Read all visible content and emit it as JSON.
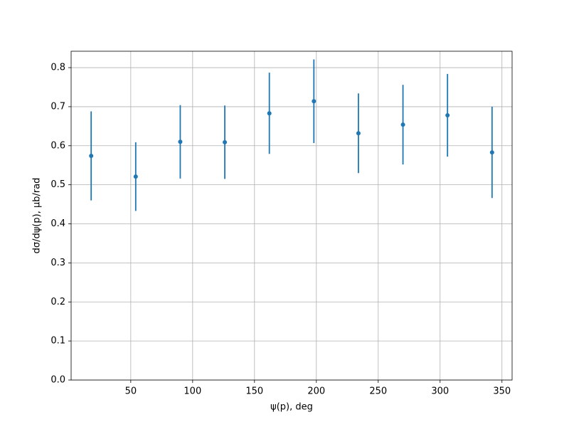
{
  "chart_data": {
    "type": "errorbar",
    "x_label": "ψ(p), deg",
    "y_label": "dσ/dψ(p), μb/rad",
    "x": [
      18,
      54,
      90,
      126,
      162,
      198,
      234,
      270,
      306,
      342
    ],
    "series": [
      {
        "color": "#1f77b4",
        "values": [
          0.574,
          0.521,
          0.61,
          0.609,
          0.683,
          0.714,
          0.632,
          0.654,
          0.678,
          0.583
        ],
        "errors": [
          0.114,
          0.088,
          0.094,
          0.094,
          0.104,
          0.107,
          0.102,
          0.102,
          0.106,
          0.117
        ]
      }
    ],
    "xlim": [
      1.8,
      358.2
    ],
    "ylim": [
      0,
      0.842
    ],
    "xticks": [
      50,
      100,
      150,
      200,
      250,
      300,
      350
    ],
    "yticks": [
      {
        "value": 0,
        "label": "0.0"
      },
      {
        "value": 0.1,
        "label": "0.1"
      },
      {
        "value": 0.2,
        "label": "0.2"
      },
      {
        "value": 0.3,
        "label": "0.3"
      },
      {
        "value": 0.4,
        "label": "0.4"
      },
      {
        "value": 0.5,
        "label": "0.5"
      },
      {
        "value": 0.6,
        "label": "0.6"
      },
      {
        "value": 0.7,
        "label": "0.7"
      },
      {
        "value": 0.8,
        "label": "0.8"
      }
    ],
    "grid": true
  }
}
